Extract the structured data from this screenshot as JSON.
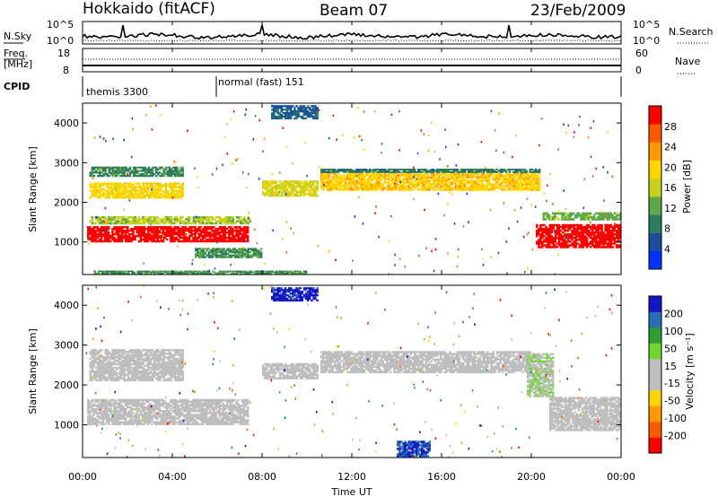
{
  "header": {
    "site": "Hokkaido (fitACF)",
    "beam": "Beam 07",
    "date": "23/Feb/2009"
  },
  "top_panels": {
    "nsky_label": "N.Sky",
    "nsky_ticks_left": [
      "10^5",
      "10^0"
    ],
    "nsky_ticks_right": [
      "10^5",
      "10^0"
    ],
    "nsearch_label": "N.Search",
    "freq_label_1": "Freq.",
    "freq_label_2": "[MHz]",
    "freq_ticks": [
      "18",
      "8"
    ],
    "nave_ticks": [
      "60",
      "0"
    ],
    "nave_label": "Nave",
    "cpid_label": "CPID",
    "cpid_modes": [
      {
        "label": "themis 3300",
        "start_hour": 0
      },
      {
        "label": "normal (fast) 151",
        "start_hour": 6
      }
    ]
  },
  "colors": {
    "power_scale": [
      "#0033ff",
      "#1a4fa0",
      "#2e7d5a",
      "#5da84a",
      "#c8d21e",
      "#ffd400",
      "#ff9a00",
      "#ff5a00",
      "#ff0000"
    ],
    "velocity_scale": [
      "#ff0000",
      "#ff5a00",
      "#ff9a00",
      "#ffd400",
      "#bebebe",
      "#bebebe",
      "#6fd62c",
      "#2e9e35",
      "#2a6fb5",
      "#1414c8"
    ],
    "ground_scatter": "#bebebe"
  },
  "colorbars": {
    "power": {
      "label": "Power [dB]",
      "ticks": [
        "28",
        "24",
        "20",
        "16",
        "12",
        "8",
        "4"
      ]
    },
    "velocity": {
      "label": "Velocity [m s⁻¹]",
      "ticks": [
        "200",
        "100",
        "50",
        "15",
        "-15",
        "-50",
        "-100",
        "-200"
      ]
    }
  },
  "chart_data": [
    {
      "type": "heatmap",
      "title": "Power",
      "xlabel": "Time UT",
      "ylabel": "Slant Range [km]",
      "xlim_hours": [
        0,
        24
      ],
      "ylim_km": [
        180,
        4500
      ],
      "x_ticks": [
        "00:00",
        "04:00",
        "08:00",
        "12:00",
        "16:00",
        "20:00",
        "00:00"
      ],
      "y_ticks": [
        1000,
        2000,
        3000,
        4000
      ],
      "colorbar": "Power [dB]",
      "value_range": [
        0,
        30
      ],
      "regions": [
        {
          "t0": 0.2,
          "t1": 7.4,
          "r0": 1000,
          "r1": 1400,
          "value": 29
        },
        {
          "t0": 0.3,
          "t1": 7.5,
          "r0": 1450,
          "r1": 1650,
          "value": 14
        },
        {
          "t0": 0.3,
          "t1": 4.5,
          "r0": 2100,
          "r1": 2500,
          "value": 18
        },
        {
          "t0": 0.3,
          "t1": 4.5,
          "r0": 2650,
          "r1": 2900,
          "value": 9
        },
        {
          "t0": 8.0,
          "t1": 10.5,
          "r0": 2150,
          "r1": 2550,
          "value": 16
        },
        {
          "t0": 10.6,
          "t1": 20.4,
          "r0": 2300,
          "r1": 2750,
          "value": 19
        },
        {
          "t0": 10.6,
          "t1": 20.4,
          "r0": 2750,
          "r1": 2850,
          "value": 8
        },
        {
          "t0": 20.2,
          "t1": 24.0,
          "r0": 850,
          "r1": 1450,
          "value": 29
        },
        {
          "t0": 20.5,
          "t1": 24.0,
          "r0": 1550,
          "r1": 1750,
          "value": 12
        },
        {
          "t0": 8.4,
          "t1": 10.5,
          "r0": 4100,
          "r1": 4450,
          "value": 6
        },
        {
          "t0": 0.5,
          "t1": 10.0,
          "r0": 200,
          "r1": 280,
          "value": 10
        },
        {
          "t0": 5.0,
          "t1": 8.0,
          "r0": 600,
          "r1": 850,
          "value": 10
        }
      ]
    },
    {
      "type": "heatmap",
      "title": "Velocity",
      "xlabel": "Time UT",
      "ylabel": "Slant Range [km]",
      "xlim_hours": [
        0,
        24
      ],
      "ylim_km": [
        180,
        4500
      ],
      "x_ticks": [
        "00:00",
        "04:00",
        "08:00",
        "12:00",
        "16:00",
        "20:00",
        "00:00"
      ],
      "y_ticks": [
        1000,
        2000,
        3000,
        4000
      ],
      "colorbar": "Velocity [m s⁻¹]",
      "value_range": [
        -250,
        250
      ],
      "regions": [
        {
          "t0": 0.2,
          "t1": 7.4,
          "r0": 1000,
          "r1": 1650,
          "value": 0
        },
        {
          "t0": 0.3,
          "t1": 4.5,
          "r0": 2100,
          "r1": 2900,
          "value": 0
        },
        {
          "t0": 8.0,
          "t1": 10.5,
          "r0": 2150,
          "r1": 2550,
          "value": 0
        },
        {
          "t0": 10.6,
          "t1": 20.0,
          "r0": 2300,
          "r1": 2850,
          "value": 0
        },
        {
          "t0": 19.8,
          "t1": 21.0,
          "r0": 1700,
          "r1": 2800,
          "value": 40
        },
        {
          "t0": 20.8,
          "t1": 24.0,
          "r0": 850,
          "r1": 1700,
          "value": 0
        },
        {
          "t0": 8.4,
          "t1": 10.5,
          "r0": 4100,
          "r1": 4450,
          "value": 220
        },
        {
          "t0": 14.0,
          "t1": 15.5,
          "r0": 200,
          "r1": 600,
          "value": 200
        }
      ]
    }
  ]
}
